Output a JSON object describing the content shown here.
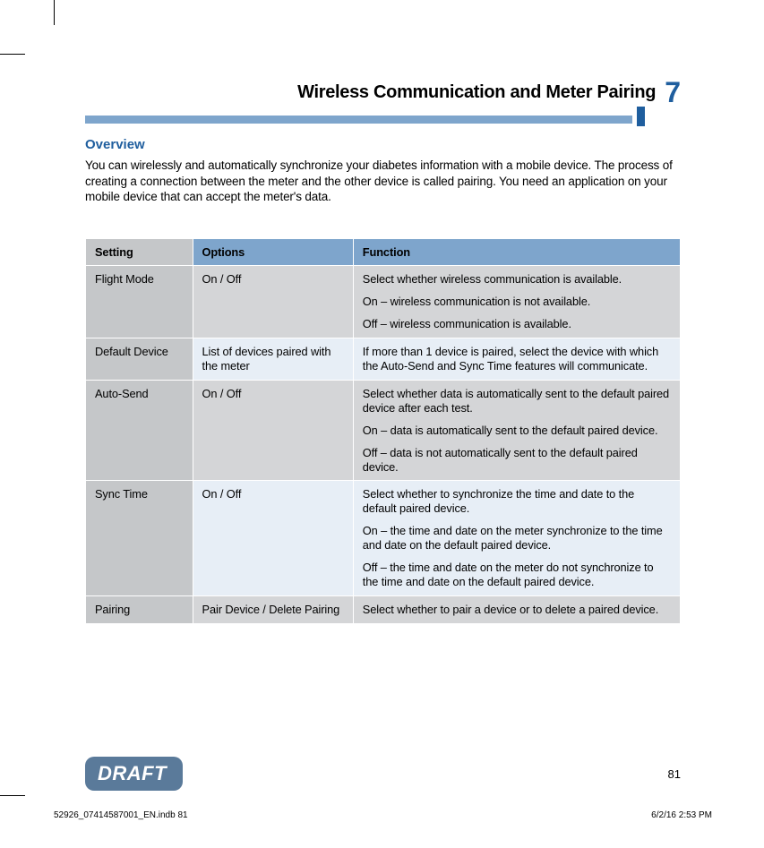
{
  "colors": {
    "brand_dark": "#1f5e9e",
    "brand_light": "#7ea5cc",
    "row_gray_setting": "#c5c7c9",
    "row_gray_a": "#d4d5d7",
    "row_blue_b": "#e7eef6",
    "draft_bg": "#5a7a9a"
  },
  "chapter": {
    "title": "Wireless Communication and Meter Pairing",
    "number": "7"
  },
  "section_title": "Overview",
  "body_text": "You can wirelessly and automatically synchronize your diabetes information with a mobile device. The process of creating a connection between the meter and the other device is called pairing. You need an application on your mobile device that can accept the meter's data.",
  "table": {
    "headers": {
      "setting": "Setting",
      "options": "Options",
      "function": "Function"
    },
    "rows": [
      {
        "setting": "Flight Mode",
        "options": "On / Off",
        "function": [
          "Select whether wireless communication is available.",
          "On – wireless communication is not available.",
          "Off – wireless communication is available."
        ]
      },
      {
        "setting": "Default Device",
        "options": "List of devices paired with the meter",
        "function": [
          "If more than 1 device is paired, select the device with which the Auto-Send and Sync Time features will communicate."
        ]
      },
      {
        "setting": "Auto-Send",
        "options": "On / Off",
        "function": [
          "Select whether data is automatically sent to the default paired device after each test.",
          "On – data is automatically sent to the default paired device.",
          "Off – data is not automatically sent to the default paired device."
        ]
      },
      {
        "setting": "Sync Time",
        "options": "On / Off",
        "function": [
          "Select whether to synchronize the time and date to the default paired device.",
          "On – the time and date on the meter synchronize to the time and date on the default paired device.",
          "Off – the time and date on the meter do not synchronize to the time and date on the default paired device."
        ]
      },
      {
        "setting": "Pairing",
        "options": "Pair Device / Delete Pairing",
        "function": [
          "Select whether to pair a device or to delete a paired device."
        ]
      }
    ]
  },
  "draft_label": "DRAFT",
  "page_number": "81",
  "print_info": {
    "left": "52926_07414587001_EN.indb   81",
    "right": "6/2/16   2:53 PM"
  }
}
